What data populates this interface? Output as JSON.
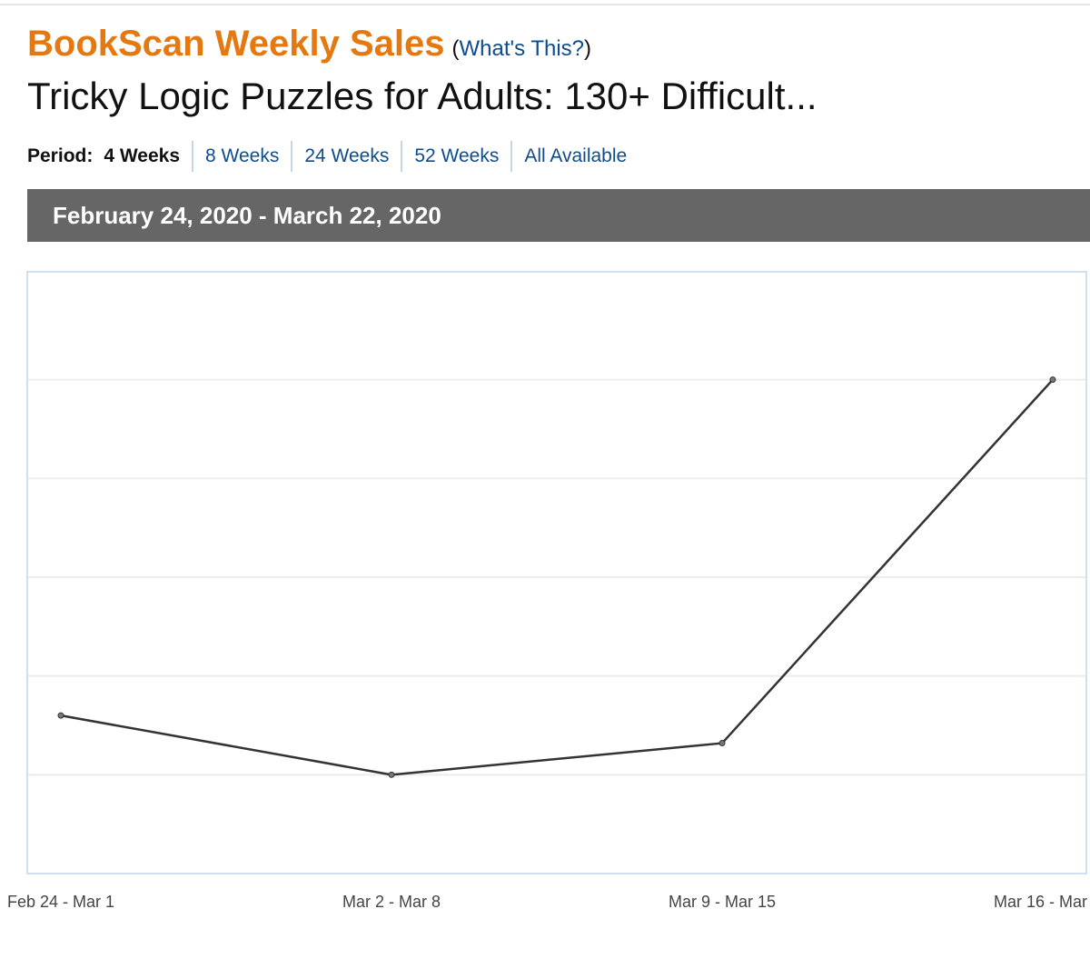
{
  "header": {
    "title": "BookScan Weekly Sales",
    "paren_open": "(",
    "help_link": "What's This?",
    "paren_close": ")"
  },
  "book_title": "Tricky Logic Puzzles for Adults: 130+ Difficult...",
  "period": {
    "label": "Period:",
    "options": [
      "4 Weeks",
      "8 Weeks",
      "24 Weeks",
      "52 Weeks",
      "All Available"
    ],
    "active_index": 0
  },
  "date_range": "February 24, 2020 - March 22, 2020",
  "colors": {
    "title": "#e47911",
    "link": "#0f4c8c",
    "band": "#666666",
    "line": "#333333",
    "grid": "#ececec",
    "frame": "#cfe0f0"
  },
  "chart_data": {
    "type": "line",
    "categories": [
      "Feb 24 - Mar 1",
      "Mar 2 - Mar 8",
      "Mar 9 - Mar 15",
      "Mar 16 - Mar"
    ],
    "series": [
      {
        "values": [
          1.6,
          1.0,
          1.32,
          5.0
        ]
      }
    ],
    "ylim": [
      0,
      6
    ],
    "grid": true,
    "y_tick_labels_visible": false
  }
}
